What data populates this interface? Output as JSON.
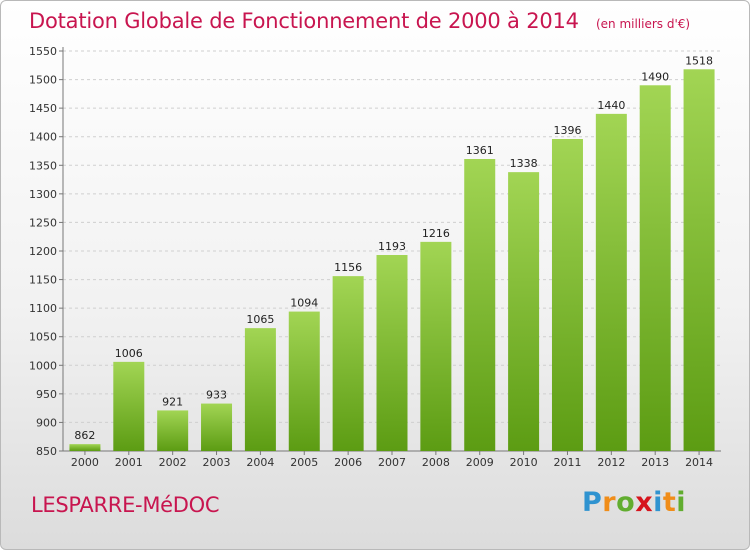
{
  "header": {
    "title": "Dotation Globale de Fonctionnement de 2000 à 2014",
    "subtitle": "(en milliers d'€)"
  },
  "footer": {
    "commune": "LESPARRE-MéDOC",
    "logo_text": "Proxiti"
  },
  "colors": {
    "title": "#c8154f",
    "bar_light": "#9ed24e",
    "bar_dark": "#5d9e14",
    "grid": "#c8c8c8"
  },
  "chart_data": {
    "type": "bar",
    "title": "Dotation Globale de Fonctionnement de 2000 à 2014",
    "subtitle": "(en milliers d'€)",
    "xlabel": "",
    "ylabel": "",
    "categories": [
      "2000",
      "2001",
      "2002",
      "2003",
      "2004",
      "2005",
      "2006",
      "2007",
      "2008",
      "2009",
      "2010",
      "2011",
      "2012",
      "2013",
      "2014"
    ],
    "values": [
      862,
      1006,
      921,
      933,
      1065,
      1094,
      1156,
      1193,
      1216,
      1361,
      1338,
      1396,
      1440,
      1490,
      1518
    ],
    "ylim": [
      850,
      1550
    ],
    "yticks": [
      850,
      900,
      950,
      1000,
      1050,
      1100,
      1150,
      1200,
      1250,
      1300,
      1350,
      1400,
      1450,
      1500,
      1550
    ],
    "grid": true,
    "legend": "none"
  }
}
